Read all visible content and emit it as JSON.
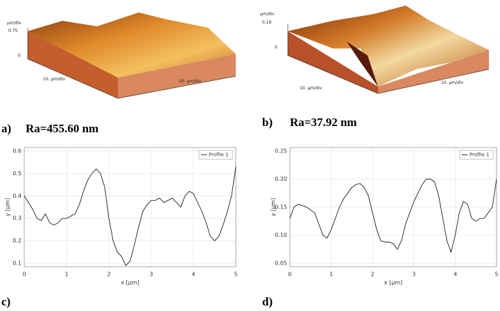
{
  "panels": [
    {
      "letter": "a)",
      "caption": "Ra=455.60 nm"
    },
    {
      "letter": "b)",
      "caption": "Ra=37.92 nm"
    },
    {
      "letter": "c)"
    },
    {
      "letter": "d)"
    }
  ],
  "surfaces": [
    {
      "unit": "µm/div",
      "zmax": "0.75",
      "zmin": "0",
      "x_label": "10. µm/div",
      "y_label": "10. µm/div"
    },
    {
      "unit": "µm/div",
      "zmax": "0.19",
      "zmin": "0",
      "x_label": "10. µm/div",
      "y_label": "10. µm/div"
    }
  ],
  "chart_data": [
    {
      "type": "line",
      "x_label": "x [µm]",
      "y_label": "y [µm]",
      "x": [
        0,
        0.1,
        0.2,
        0.3,
        0.4,
        0.5,
        0.6,
        0.7,
        0.8,
        0.9,
        1.0,
        1.1,
        1.2,
        1.3,
        1.4,
        1.5,
        1.6,
        1.7,
        1.8,
        1.9,
        2.0,
        2.1,
        2.2,
        2.3,
        2.4,
        2.5,
        2.6,
        2.7,
        2.8,
        2.9,
        3.0,
        3.1,
        3.2,
        3.3,
        3.4,
        3.5,
        3.6,
        3.7,
        3.8,
        3.9,
        4.0,
        4.1,
        4.2,
        4.3,
        4.4,
        4.5,
        4.6,
        4.7,
        4.8,
        4.9,
        5.0
      ],
      "series": [
        {
          "name": "Profile 1",
          "color": "#000000",
          "values": [
            0.4,
            0.37,
            0.34,
            0.3,
            0.29,
            0.32,
            0.28,
            0.27,
            0.28,
            0.3,
            0.3,
            0.31,
            0.32,
            0.36,
            0.42,
            0.47,
            0.5,
            0.52,
            0.5,
            0.44,
            0.3,
            0.2,
            0.15,
            0.13,
            0.09,
            0.11,
            0.18,
            0.26,
            0.33,
            0.36,
            0.38,
            0.38,
            0.39,
            0.37,
            0.38,
            0.39,
            0.37,
            0.35,
            0.4,
            0.42,
            0.41,
            0.37,
            0.33,
            0.28,
            0.22,
            0.2,
            0.22,
            0.27,
            0.33,
            0.4,
            0.53
          ]
        }
      ],
      "xlim": [
        0,
        5
      ],
      "xticks": [
        0,
        1,
        2,
        3,
        4,
        5
      ],
      "ylim": [
        0.085,
        0.615
      ],
      "yticks": [
        0.1,
        0.2,
        0.3,
        0.4,
        0.5,
        0.6
      ],
      "grid": true,
      "legend": "top-right"
    },
    {
      "type": "line",
      "x_label": "x [µm]",
      "y_label": "y [µm]",
      "x": [
        0,
        0.1,
        0.2,
        0.3,
        0.4,
        0.5,
        0.6,
        0.7,
        0.8,
        0.9,
        1.0,
        1.1,
        1.2,
        1.3,
        1.4,
        1.5,
        1.6,
        1.7,
        1.8,
        1.9,
        2.0,
        2.1,
        2.2,
        2.3,
        2.4,
        2.5,
        2.6,
        2.7,
        2.8,
        2.9,
        3.0,
        3.1,
        3.2,
        3.3,
        3.4,
        3.5,
        3.6,
        3.7,
        3.8,
        3.9,
        4.0,
        4.1,
        4.2,
        4.3,
        4.4,
        4.5,
        4.6,
        4.7,
        4.8,
        4.9,
        5.0
      ],
      "series": [
        {
          "name": "Profile 1",
          "color": "#000000",
          "values": [
            0.13,
            0.15,
            0.155,
            0.153,
            0.15,
            0.145,
            0.14,
            0.12,
            0.1,
            0.095,
            0.11,
            0.13,
            0.15,
            0.165,
            0.175,
            0.185,
            0.19,
            0.192,
            0.185,
            0.17,
            0.14,
            0.11,
            0.09,
            0.088,
            0.088,
            0.085,
            0.075,
            0.09,
            0.12,
            0.14,
            0.16,
            0.175,
            0.19,
            0.2,
            0.2,
            0.195,
            0.17,
            0.13,
            0.09,
            0.07,
            0.1,
            0.14,
            0.16,
            0.155,
            0.13,
            0.125,
            0.13,
            0.13,
            0.14,
            0.15,
            0.2
          ]
        }
      ],
      "xlim": [
        0,
        5
      ],
      "xticks": [
        0,
        1,
        2,
        3,
        4,
        5
      ],
      "ylim": [
        0.044,
        0.256
      ],
      "yticks": [
        0.05,
        {
          "value": 0.1,
          "label": "0.10"
        },
        0.15,
        {
          "value": 0.2,
          "label": "0.20"
        },
        0.25
      ],
      "grid": true,
      "legend": "top-right"
    }
  ]
}
